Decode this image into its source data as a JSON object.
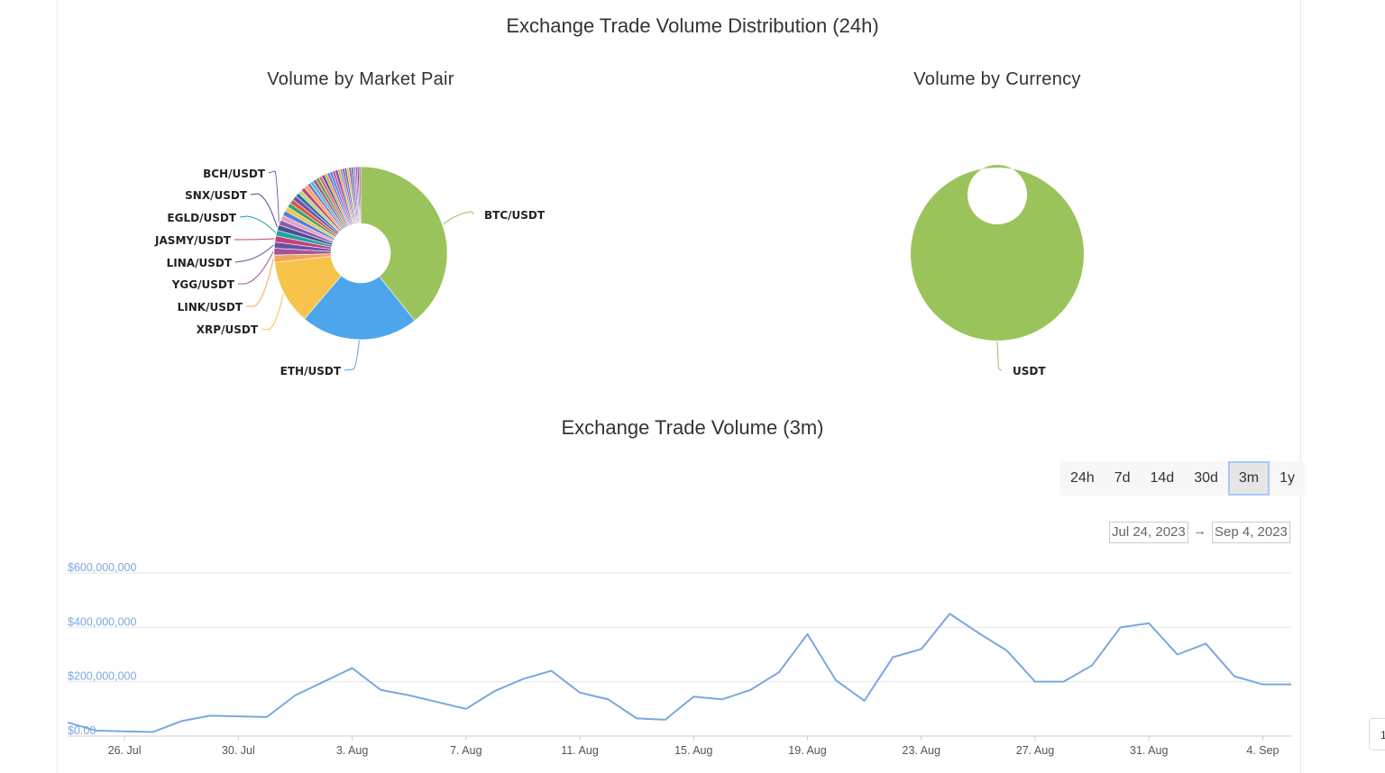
{
  "page_title": "Exchange Trade Volume Distribution (24h)",
  "chart_data": [
    {
      "type": "pie",
      "title": "Volume by Market Pair",
      "donut": true,
      "slices": [
        {
          "label": "BTC/USDT",
          "value": 37.5,
          "color": "#9bc35c",
          "labeled": true
        },
        {
          "label": "ETH/USDT",
          "value": 21.0,
          "color": "#4da5ec",
          "labeled": true
        },
        {
          "label": "XRP/USDT",
          "value": 11.5,
          "color": "#f7c34a",
          "labeled": true
        },
        {
          "label": "LINK/USDT",
          "value": 1.3,
          "color": "#f0a858",
          "labeled": true
        },
        {
          "label": "YGG/USDT",
          "value": 1.2,
          "color": "#a5539b",
          "labeled": true
        },
        {
          "label": "LINA/USDT",
          "value": 1.1,
          "color": "#6c4fa0",
          "labeled": true
        },
        {
          "label": "JASMY/USDT",
          "value": 1.1,
          "color": "#c4417a",
          "labeled": true
        },
        {
          "label": "EGLD/USDT",
          "value": 1.0,
          "color": "#1fa3a0",
          "labeled": true
        },
        {
          "label": "SNX/USDT",
          "value": 1.0,
          "color": "#4a4f8f",
          "labeled": true
        },
        {
          "label": "BCH/USDT",
          "value": 0.9,
          "color": "#8a5bb0",
          "labeled": true
        },
        {
          "label": "",
          "value": 0.9,
          "color": "#e0a3c8",
          "labeled": false
        },
        {
          "label": "",
          "value": 0.9,
          "color": "#5b7fd6",
          "labeled": false
        },
        {
          "label": "",
          "value": 0.8,
          "color": "#e8c84a",
          "labeled": false
        },
        {
          "label": "",
          "value": 0.8,
          "color": "#3e9e6f",
          "labeled": false
        },
        {
          "label": "",
          "value": 0.8,
          "color": "#d9593c",
          "labeled": false
        },
        {
          "label": "",
          "value": 0.8,
          "color": "#7a4fa6",
          "labeled": false
        },
        {
          "label": "",
          "value": 0.7,
          "color": "#2f6fb0",
          "labeled": false
        },
        {
          "label": "",
          "value": 0.7,
          "color": "#b8d878",
          "labeled": false
        },
        {
          "label": "",
          "value": 0.7,
          "color": "#c4417a",
          "labeled": false
        },
        {
          "label": "",
          "value": 0.7,
          "color": "#f0a858",
          "labeled": false
        },
        {
          "label": "",
          "value": 0.6,
          "color": "#8f6fc4",
          "labeled": false
        },
        {
          "label": "",
          "value": 0.6,
          "color": "#4dc0c0",
          "labeled": false
        },
        {
          "label": "",
          "value": 0.6,
          "color": "#a5539b",
          "labeled": false
        },
        {
          "label": "",
          "value": 0.6,
          "color": "#6c9e3c",
          "labeled": false
        },
        {
          "label": "",
          "value": 0.6,
          "color": "#e06a8a",
          "labeled": false
        },
        {
          "label": "",
          "value": 0.5,
          "color": "#4a4f8f",
          "labeled": false
        },
        {
          "label": "",
          "value": 0.5,
          "color": "#d4b030",
          "labeled": false
        },
        {
          "label": "",
          "value": 0.5,
          "color": "#9a6ad0",
          "labeled": false
        },
        {
          "label": "",
          "value": 0.5,
          "color": "#3b8fd9",
          "labeled": false
        },
        {
          "label": "",
          "value": 0.5,
          "color": "#c85a9a",
          "labeled": false
        },
        {
          "label": "",
          "value": 0.5,
          "color": "#7a4fa6",
          "labeled": false
        },
        {
          "label": "",
          "value": 0.4,
          "color": "#e8a040",
          "labeled": false
        },
        {
          "label": "",
          "value": 0.4,
          "color": "#5aa0d0",
          "labeled": false
        },
        {
          "label": "",
          "value": 0.4,
          "color": "#b04f8a",
          "labeled": false
        },
        {
          "label": "",
          "value": 0.4,
          "color": "#6a5fb0",
          "labeled": false
        },
        {
          "label": "",
          "value": 0.4,
          "color": "#c0d060",
          "labeled": false
        },
        {
          "label": "",
          "value": 0.4,
          "color": "#9a4fb0",
          "labeled": false
        },
        {
          "label": "",
          "value": 0.4,
          "color": "#4a7fc0",
          "labeled": false
        },
        {
          "label": "",
          "value": 0.4,
          "color": "#d27ab0",
          "labeled": false
        },
        {
          "label": "",
          "value": 0.3,
          "color": "#8a5bb0",
          "labeled": false
        },
        {
          "label": "",
          "value": 0.3,
          "color": "#6c4fa0",
          "labeled": false
        },
        {
          "label": "",
          "value": 0.3,
          "color": "#a5539b",
          "labeled": false
        }
      ]
    },
    {
      "type": "pie",
      "title": "Volume by Currency",
      "donut": true,
      "slices": [
        {
          "label": "USDT",
          "value": 100,
          "color": "#9bc35c",
          "labeled": true
        }
      ]
    },
    {
      "type": "line",
      "title": "Exchange Trade Volume (3m)",
      "series": [
        {
          "name": "Volume",
          "color": "#7ba7e0",
          "x": [
            "2023-07-24",
            "2023-07-25",
            "2023-07-27",
            "2023-07-28",
            "2023-07-29",
            "2023-07-31",
            "2023-08-01",
            "2023-08-02",
            "2023-08-03",
            "2023-08-04",
            "2023-08-05",
            "2023-08-06",
            "2023-08-07",
            "2023-08-08",
            "2023-08-09",
            "2023-08-10",
            "2023-08-11",
            "2023-08-12",
            "2023-08-13",
            "2023-08-14",
            "2023-08-15",
            "2023-08-16",
            "2023-08-17",
            "2023-08-18",
            "2023-08-19",
            "2023-08-20",
            "2023-08-21",
            "2023-08-22",
            "2023-08-23",
            "2023-08-24",
            "2023-08-25",
            "2023-08-26",
            "2023-08-27",
            "2023-08-28",
            "2023-08-29",
            "2023-08-30",
            "2023-08-31",
            "2023-09-01",
            "2023-09-02",
            "2023-09-03",
            "2023-09-04",
            "2023-09-05"
          ],
          "values": [
            50000000,
            20000000,
            15000000,
            55000000,
            75000000,
            70000000,
            150000000,
            200000000,
            250000000,
            170000000,
            150000000,
            125000000,
            100000000,
            165000000,
            210000000,
            240000000,
            160000000,
            135000000,
            65000000,
            60000000,
            145000000,
            135000000,
            170000000,
            235000000,
            375000000,
            205000000,
            130000000,
            290000000,
            320000000,
            450000000,
            380000000,
            315000000,
            200000000,
            200000000,
            260000000,
            400000000,
            415000000,
            300000000,
            340000000,
            220000000,
            190000000,
            190000000
          ]
        }
      ],
      "y_ticks": [
        "$600,000,000",
        "$400,000,000",
        "$200,000,000",
        "$0.00"
      ],
      "y_tick_values": [
        600000000,
        400000000,
        200000000,
        0
      ],
      "x_ticks": [
        "26. Jul",
        "30. Jul",
        "3. Aug",
        "7. Aug",
        "11. Aug",
        "15. Aug",
        "19. Aug",
        "23. Aug",
        "27. Aug",
        "31. Aug",
        "4. Sep"
      ],
      "x_tick_dates": [
        "2023-07-26",
        "2023-07-30",
        "2023-08-03",
        "2023-08-07",
        "2023-08-11",
        "2023-08-15",
        "2023-08-19",
        "2023-08-23",
        "2023-08-27",
        "2023-08-31",
        "2023-09-04"
      ],
      "x_range": [
        "2023-07-24",
        "2023-09-05"
      ],
      "ylim": [
        0,
        600000000
      ],
      "grid": true
    }
  ],
  "range_selector": {
    "buttons": [
      "24h",
      "7d",
      "14d",
      "30d",
      "3m",
      "1y"
    ],
    "selected": "3m"
  },
  "date_range": {
    "from": "Jul 24, 2023",
    "to": "Sep 4, 2023",
    "separator": "→"
  },
  "edge_button_label": "1"
}
